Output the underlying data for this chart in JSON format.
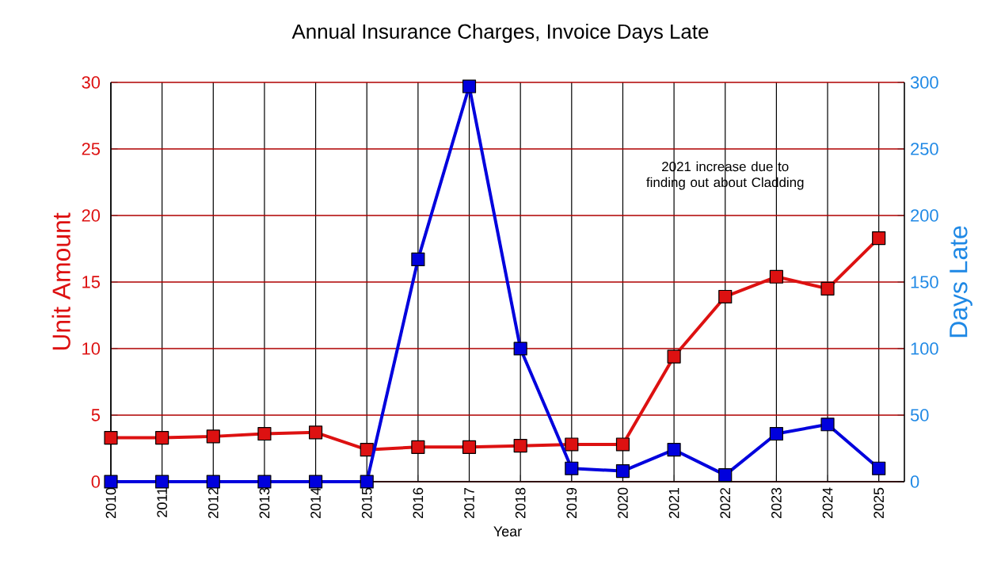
{
  "chart_data": {
    "type": "line",
    "title": "Annual Insurance Charges, Invoice Days Late",
    "xlabel": "Year",
    "ylabel": "Unit Amount",
    "y2label": "Days Late",
    "categories": [
      "2010",
      "2011",
      "2012",
      "2013",
      "2014",
      "2015",
      "2016",
      "2017",
      "2018",
      "2019",
      "2020",
      "2021",
      "2022",
      "2023",
      "2024",
      "2025"
    ],
    "series": [
      {
        "color": "#dd1111",
        "values": [
          3.3,
          3.3,
          3.4,
          3.6,
          3.7,
          2.4,
          2.6,
          2.6,
          2.7,
          2.8,
          2.8,
          9.4,
          13.9,
          15.4,
          14.5,
          18.3
        ]
      },
      {
        "color": "#0000dd",
        "axis": "y2",
        "values": [
          0,
          0,
          0,
          0,
          0,
          0,
          167,
          297,
          100,
          10,
          8,
          24,
          5,
          36,
          43,
          10
        ]
      }
    ],
    "ylim": [
      0,
      30
    ],
    "yticks": [
      0,
      5,
      10,
      15,
      20,
      25,
      30
    ],
    "y2lim": [
      0,
      300
    ],
    "y2ticks": [
      0,
      50,
      100,
      150,
      200,
      250,
      300
    ],
    "grid": true,
    "marker": "square",
    "line_style": "solid",
    "annotations": [
      "2021 increase due to finding out about Cladding"
    ]
  }
}
